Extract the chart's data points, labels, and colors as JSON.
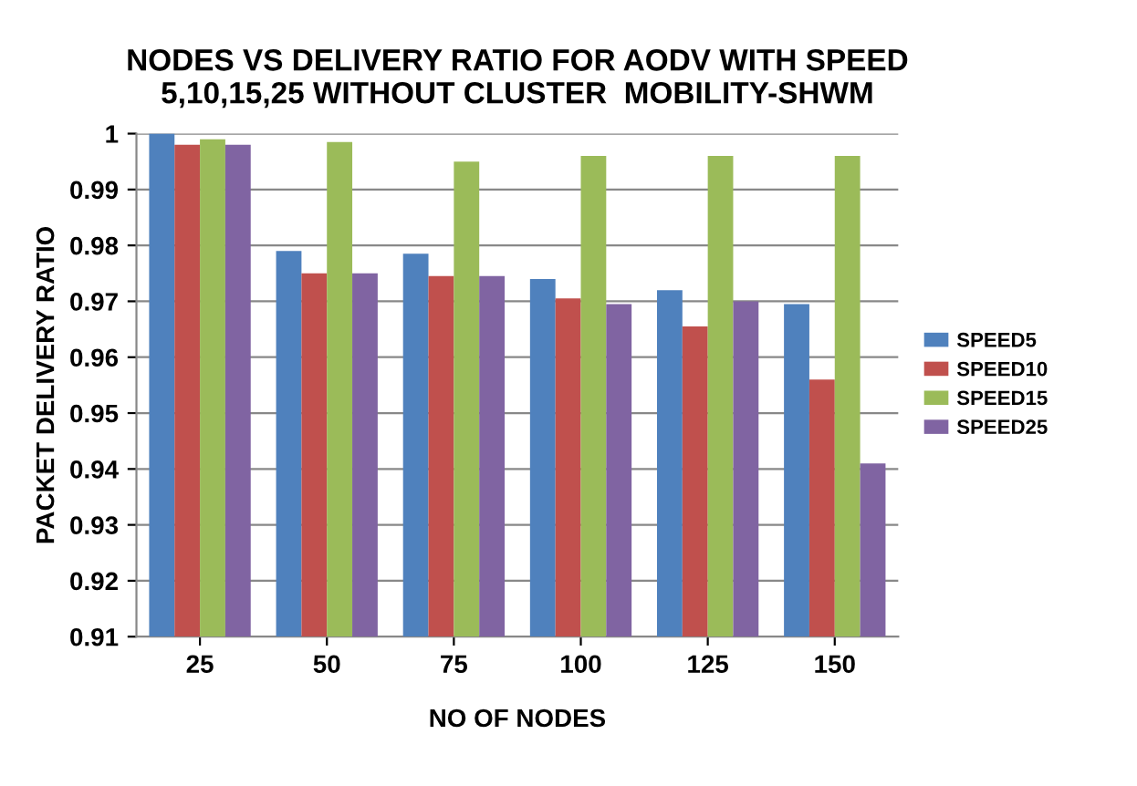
{
  "chart_data": {
    "type": "bar",
    "title": "NODES VS DELIVERY RATIO FOR AODV WITH SPEED\n5,10,15,25 WITHOUT CLUSTER  MOBILITY-SHWM",
    "xlabel": "NO OF NODES",
    "ylabel": "PACKET DELIVERY RATIO",
    "categories": [
      "25",
      "50",
      "75",
      "100",
      "125",
      "150"
    ],
    "series": [
      {
        "name": "SPEED5",
        "color": "#4f81bd",
        "values": [
          1.0,
          0.979,
          0.9785,
          0.974,
          0.972,
          0.9695
        ]
      },
      {
        "name": "SPEED10",
        "color": "#c0504d",
        "values": [
          0.998,
          0.975,
          0.9745,
          0.9705,
          0.9655,
          0.956
        ]
      },
      {
        "name": "SPEED15",
        "color": "#9bbb59",
        "values": [
          0.999,
          0.9985,
          0.995,
          0.996,
          0.996,
          0.996
        ]
      },
      {
        "name": "SPEED25",
        "color": "#8064a2",
        "values": [
          0.998,
          0.975,
          0.9745,
          0.9695,
          0.97,
          0.941
        ]
      }
    ],
    "ylim": [
      0.91,
      1
    ],
    "yticks": [
      0.91,
      0.92,
      0.93,
      0.94,
      0.95,
      0.96,
      0.97,
      0.98,
      0.99,
      1
    ],
    "grid": "y",
    "legend": "right"
  }
}
